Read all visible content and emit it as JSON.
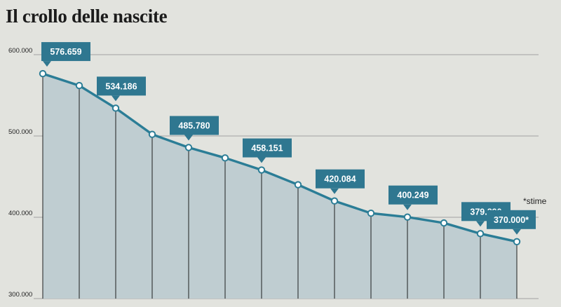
{
  "title": "Il crollo delle nascite",
  "note": "*stime",
  "colors": {
    "background": "#e2e3de",
    "area_fill": "#bfcdd1",
    "line": "#2b7d96",
    "label_box": "#2f7790",
    "label_text": "#ffffff",
    "grid": "#8c8c8c"
  },
  "chart_data": {
    "type": "area",
    "title": "Il crollo delle nascite",
    "ylim": [
      300000,
      600000
    ],
    "y_ticks": [
      300000,
      400000,
      500000,
      600000
    ],
    "y_tick_labels": [
      "300.000",
      "400.000",
      "500.000",
      "600.000"
    ],
    "grid": true,
    "series": [
      {
        "values": [
          576659,
          562000,
          534186,
          502000,
          485780,
          473000,
          458151,
          440000,
          420084,
          405000,
          400249,
          393000,
          379890,
          370000
        ]
      }
    ],
    "data_labels": [
      {
        "index": 0,
        "text": "576.659"
      },
      {
        "index": 2,
        "text": "534.186"
      },
      {
        "index": 4,
        "text": "485.780"
      },
      {
        "index": 6,
        "text": "458.151"
      },
      {
        "index": 8,
        "text": "420.084"
      },
      {
        "index": 10,
        "text": "400.249"
      },
      {
        "index": 12,
        "text": "379.890"
      },
      {
        "index": 13,
        "text": "370.000*"
      }
    ]
  }
}
